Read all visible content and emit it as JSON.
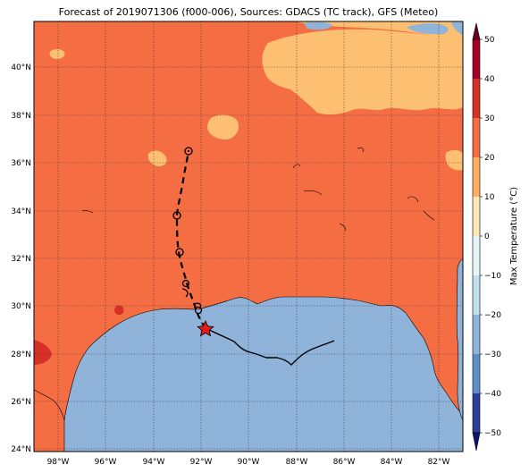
{
  "title": "Forecast of 2019071306 (f000-006), Sources: GDACS (TC track), GFS (Meteo)",
  "lon_ticks": [
    "98°W",
    "96°W",
    "94°W",
    "92°W",
    "90°W",
    "88°W",
    "86°W",
    "84°W",
    "82°W"
  ],
  "lat_ticks": [
    "40°N",
    "38°N",
    "36°N",
    "34°N",
    "32°N",
    "30°N",
    "28°N",
    "26°N",
    "24°N"
  ],
  "colorbar": {
    "label": "Max Temperature (°C)",
    "ticks": [
      "50",
      "40",
      "30",
      "20",
      "10",
      "0",
      "−10",
      "−20",
      "−30",
      "−40",
      "−50"
    ],
    "colors": {
      "hot_dark": "#8b0021",
      "hot": "#c7312a",
      "warm": "#f36d44",
      "mild": "#fdbf72",
      "cool_light": "#fff2c8",
      "near_zero": "#e0f2f7",
      "cold_light": "#bcdcea",
      "cold": "#91b6d8",
      "cold_mid": "#5f8fc4",
      "cold_dark": "#3c53a4",
      "very_cold": "#1f248a"
    }
  },
  "map_colors": {
    "land": "#f46d43",
    "land_mild": "#fdae61",
    "water": "#8fb3d9",
    "hot_patch": "#d73027"
  },
  "track": {
    "marker": "red-star",
    "marker_color": "#e31a1c",
    "line_color": "#000000"
  }
}
